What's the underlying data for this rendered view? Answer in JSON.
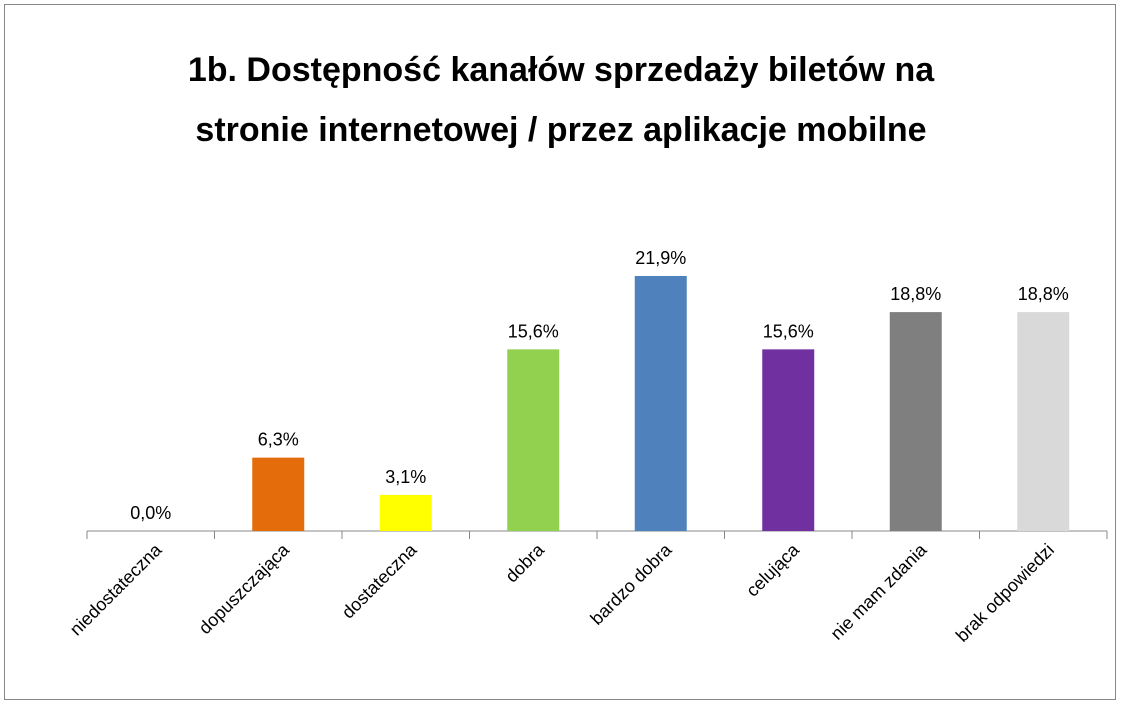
{
  "chart_data": {
    "type": "bar",
    "title": "1b. Dostępność kanałów sprzedaży biletów na stronie internetowej / przez aplikacje mobilne",
    "categories": [
      "niedostateczna",
      "dopuszczająca",
      "dostateczna",
      "dobra",
      "bardzo dobra",
      "celująca",
      "nie mam zdania",
      "brak odpowiedzi"
    ],
    "values": [
      0.0,
      6.3,
      3.1,
      15.6,
      21.9,
      15.6,
      18.8,
      18.8
    ],
    "value_labels": [
      "0,0%",
      "6,3%",
      "3,1%",
      "15,6%",
      "21,9%",
      "15,6%",
      "18,8%",
      "18,8%"
    ],
    "colors": [
      "#4f81bd",
      "#e46c0a",
      "#ffff00",
      "#92d050",
      "#4f81bd",
      "#7030a0",
      "#7f7f7f",
      "#d9d9d9"
    ]
  }
}
